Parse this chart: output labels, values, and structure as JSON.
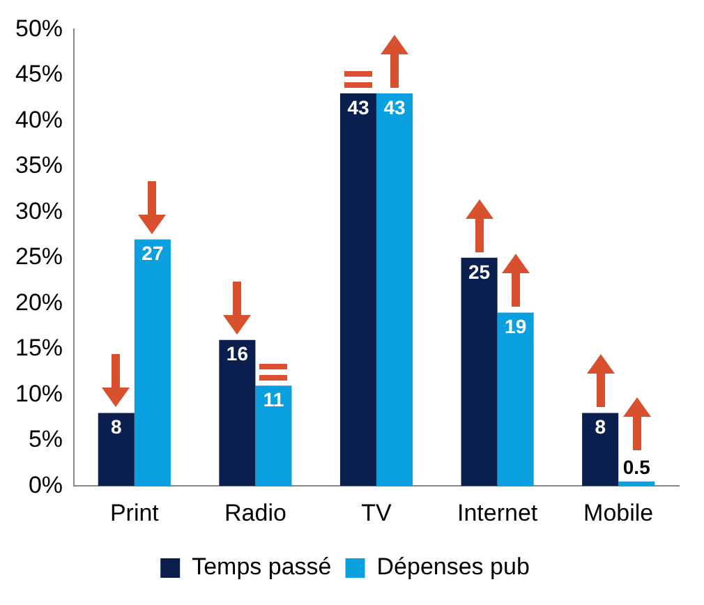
{
  "chart_data": {
    "type": "bar",
    "categories": [
      "Print",
      "Radio",
      "TV",
      "Internet",
      "Mobile"
    ],
    "series": [
      {
        "name": "Temps passé",
        "color": "#0b1f4f",
        "values": [
          8,
          16,
          43,
          25,
          8
        ]
      },
      {
        "name": "Dépenses pub",
        "color": "#0aa0e0",
        "values": [
          27,
          11,
          43,
          19,
          0.5
        ]
      }
    ],
    "ylim": [
      0,
      50
    ],
    "yticks": [
      {
        "value": 0,
        "label": "0%"
      },
      {
        "value": 5,
        "label": "5%"
      },
      {
        "value": 10,
        "label": "10%"
      },
      {
        "value": 15,
        "label": "15%"
      },
      {
        "value": 20,
        "label": "20%"
      },
      {
        "value": 25,
        "label": "25%"
      },
      {
        "value": 30,
        "label": "30%"
      },
      {
        "value": 35,
        "label": "35%"
      },
      {
        "value": 40,
        "label": "40%"
      },
      {
        "value": 45,
        "label": "45%"
      },
      {
        "value": 50,
        "label": "50%"
      }
    ],
    "grid": false,
    "legend": "bottom",
    "data_labels": true
  }
}
